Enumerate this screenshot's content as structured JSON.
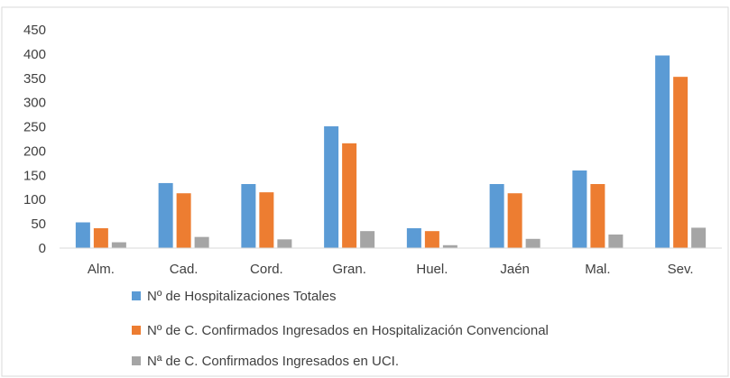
{
  "chart_data": {
    "type": "bar",
    "categories": [
      "Alm.",
      "Cad.",
      "Cord.",
      "Gran.",
      "Huel.",
      "Jaén",
      "Mal.",
      "Sev."
    ],
    "series": [
      {
        "name": "Nº de Hospitalizaciones Totales",
        "color": "#5B9BD5",
        "values": [
          53,
          134,
          132,
          251,
          41,
          132,
          160,
          397
        ]
      },
      {
        "name": "Nº de C. Confirmados Ingresados en Hospitalización Convencional",
        "color": "#ED7D31",
        "values": [
          41,
          113,
          115,
          216,
          35,
          113,
          132,
          353
        ]
      },
      {
        "name": "Nª de C. Confirmados Ingresados en UCI.",
        "color": "#A5A5A5",
        "values": [
          12,
          23,
          18,
          35,
          6,
          19,
          28,
          42
        ]
      }
    ],
    "yticks": [
      "0",
      "50",
      "100",
      "150",
      "200",
      "250",
      "300",
      "350",
      "400",
      "450"
    ],
    "ylim": [
      0,
      450
    ],
    "grid": false,
    "legend_position": "bottom"
  }
}
